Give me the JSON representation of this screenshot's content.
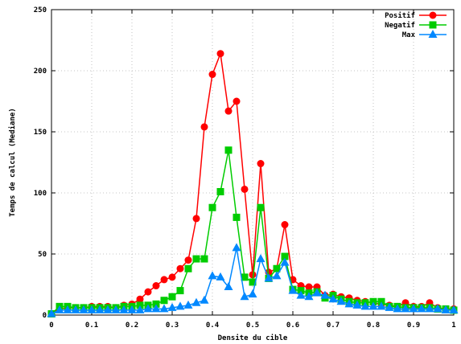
{
  "chart_data": {
    "type": "line",
    "title": "",
    "xlabel": "Densite du cible",
    "ylabel": "Temps de calcul (Mediane)",
    "xlim": [
      0,
      1
    ],
    "ylim": [
      0,
      250
    ],
    "xticks": [
      0,
      0.1,
      0.2,
      0.3,
      0.4,
      0.5,
      0.6,
      0.7,
      0.8,
      0.9,
      1
    ],
    "xtick_labels": [
      "0",
      "0.1",
      "0.2",
      "0.3",
      "0.4",
      "0.5",
      "0.6",
      "0.7",
      "0.8",
      "0.9",
      "1"
    ],
    "yticks": [
      0,
      50,
      100,
      150,
      200,
      250
    ],
    "ytick_labels": [
      "0",
      "50",
      "100",
      "150",
      "200",
      "250"
    ],
    "grid": true,
    "legend_position": "top-right",
    "x": [
      0,
      0.02,
      0.04,
      0.06,
      0.08,
      0.1,
      0.12,
      0.14,
      0.16,
      0.18,
      0.2,
      0.22,
      0.24,
      0.26,
      0.28,
      0.3,
      0.32,
      0.34,
      0.36,
      0.38,
      0.4,
      0.42,
      0.44,
      0.46,
      0.48,
      0.5,
      0.52,
      0.54,
      0.56,
      0.58,
      0.6,
      0.62,
      0.64,
      0.66,
      0.68,
      0.7,
      0.72,
      0.74,
      0.76,
      0.78,
      0.8,
      0.82,
      0.84,
      0.86,
      0.88,
      0.9,
      0.92,
      0.94,
      0.96,
      0.98,
      1.0
    ],
    "series": [
      {
        "name": "Positif",
        "color": "#ff0000",
        "marker": "circle",
        "values": [
          1,
          5,
          6,
          6,
          6,
          7,
          7,
          7,
          6,
          8,
          9,
          13,
          19,
          24,
          29,
          31,
          38,
          45,
          79,
          154,
          197,
          214,
          167,
          175,
          103,
          33,
          124,
          35,
          38,
          74,
          29,
          24,
          23,
          23,
          16,
          17,
          15,
          14,
          12,
          11,
          10,
          9,
          8,
          7,
          10,
          7,
          7,
          10,
          6,
          5,
          5
        ]
      },
      {
        "name": "Negatif",
        "color": "#00cc00",
        "marker": "square",
        "values": [
          1,
          7,
          7,
          6,
          6,
          6,
          6,
          6,
          6,
          7,
          7,
          8,
          8,
          9,
          12,
          15,
          20,
          38,
          46,
          46,
          88,
          101,
          135,
          80,
          31,
          27,
          88,
          30,
          38,
          48,
          21,
          20,
          18,
          19,
          14,
          16,
          13,
          11,
          10,
          10,
          11,
          11,
          7,
          7,
          6,
          6,
          6,
          6,
          5,
          5,
          4
        ]
      },
      {
        "name": "Max",
        "color": "#0088ff",
        "marker": "triangle",
        "values": [
          1,
          4,
          4,
          4,
          4,
          4,
          4,
          4,
          4,
          4,
          4,
          4,
          5,
          5,
          5,
          6,
          7,
          8,
          10,
          12,
          32,
          31,
          23,
          55,
          15,
          17,
          46,
          30,
          32,
          43,
          20,
          16,
          15,
          18,
          16,
          13,
          11,
          9,
          8,
          7,
          7,
          7,
          6,
          5,
          5,
          5,
          5,
          5,
          5,
          4,
          4
        ]
      }
    ]
  }
}
